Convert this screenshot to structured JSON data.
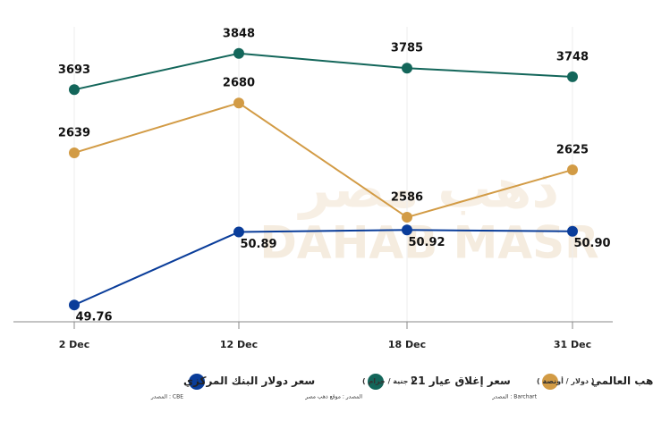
{
  "chart_data": {
    "type": "line",
    "watermark": "DAHAB MASR",
    "watermark_arabic": "ذهب مصر",
    "categories": [
      "2 Dec",
      "12 Dec",
      "18 Dec",
      "31 Dec"
    ],
    "series": [
      {
        "name": "سعر دولار البنك المركزي",
        "source": "المصدر : CBE",
        "color": "#0a3d9a",
        "values": [
          49.76,
          50.89,
          50.92,
          50.9
        ],
        "value_labels": [
          "49.76",
          "50.89",
          "50.92",
          "50.90"
        ],
        "ylim": [
          49.5,
          54.2
        ]
      },
      {
        "name": "سعر إغلاق عيار 21",
        "unit": "( جنية / جرام )",
        "source": "المصدر : موقع ذهب مصر",
        "color": "#13665a",
        "values": [
          3693,
          3848,
          3785,
          3748
        ],
        "ylim": [
          2700,
          4000
        ]
      },
      {
        "name": "سعر الذهب العالمي",
        "unit": "( دولار / أونصة )",
        "source": "المصدر : Barchart",
        "color": "#d29b45",
        "values": [
          2639,
          2680,
          2586,
          2625
        ],
        "ylim": [
          2500,
          2750
        ]
      }
    ]
  }
}
